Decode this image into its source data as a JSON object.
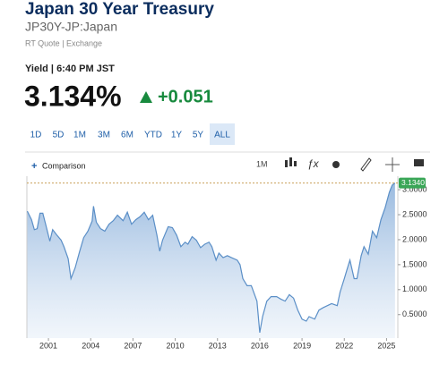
{
  "header": {
    "title": "Japan 30 Year Treasury",
    "symbol": "JP30Y-JP:Japan",
    "source": "RT Quote | Exchange"
  },
  "quote": {
    "label": "Yield | 6:40 PM JST",
    "price": "3.134%",
    "change": "+0.051"
  },
  "ranges": {
    "buttons": [
      "1D",
      "5D",
      "1M",
      "3M",
      "6M",
      "YTD",
      "1Y",
      "5Y",
      "ALL"
    ],
    "selected": 8
  },
  "toolbar": {
    "comparison": "Comparison",
    "interval": "1M"
  },
  "chart_data": {
    "type": "area",
    "color": "#5b8fc7",
    "x": [
      1999.5,
      1999.8,
      2000.0,
      2000.2,
      2000.4,
      2000.6,
      2000.8,
      2001.1,
      2001.3,
      2001.6,
      2001.9,
      2002.1,
      2002.4,
      2002.6,
      2002.9,
      2003.2,
      2003.5,
      2003.8,
      2004.1,
      2004.2,
      2004.4,
      2004.7,
      2005.0,
      2005.3,
      2005.6,
      2005.9,
      2006.3,
      2006.6,
      2006.9,
      2007.2,
      2007.5,
      2007.8,
      2008.1,
      2008.4,
      2008.7,
      2008.9,
      2009.1,
      2009.5,
      2009.8,
      2010.1,
      2010.4,
      2010.7,
      2010.9,
      2011.2,
      2011.5,
      2011.8,
      2012.1,
      2012.4,
      2012.6,
      2012.9,
      2013.1,
      2013.4,
      2013.7,
      2014.0,
      2014.4,
      2014.6,
      2014.8,
      2015.1,
      2015.4,
      2015.8,
      2016.0,
      2016.2,
      2016.5,
      2016.8,
      2017.2,
      2017.5,
      2017.8,
      2018.1,
      2018.4,
      2018.7,
      2019.0,
      2019.3,
      2019.5,
      2019.9,
      2020.2,
      2020.5,
      2020.8,
      2021.1,
      2021.5,
      2021.7,
      2022.0,
      2022.2,
      2022.4,
      2022.7,
      2022.9,
      2023.2,
      2023.4,
      2023.7,
      2024.0,
      2024.3,
      2024.6,
      2024.9,
      2025.2,
      2025.4,
      2025.6
    ],
    "values": [
      2.57,
      2.4,
      2.2,
      2.22,
      2.53,
      2.53,
      2.31,
      1.97,
      2.2,
      2.09,
      1.99,
      1.86,
      1.62,
      1.22,
      1.44,
      1.75,
      2.04,
      2.17,
      2.37,
      2.67,
      2.35,
      2.22,
      2.17,
      2.31,
      2.38,
      2.49,
      2.38,
      2.55,
      2.31,
      2.4,
      2.46,
      2.55,
      2.4,
      2.49,
      2.09,
      1.77,
      1.99,
      2.26,
      2.24,
      2.09,
      1.86,
      1.95,
      1.91,
      2.06,
      1.99,
      1.84,
      1.91,
      1.95,
      1.86,
      1.59,
      1.73,
      1.64,
      1.68,
      1.64,
      1.59,
      1.5,
      1.22,
      1.08,
      1.08,
      0.77,
      0.14,
      0.46,
      0.77,
      0.86,
      0.86,
      0.81,
      0.77,
      0.9,
      0.83,
      0.59,
      0.41,
      0.37,
      0.46,
      0.41,
      0.59,
      0.64,
      0.68,
      0.72,
      0.68,
      0.95,
      1.22,
      1.41,
      1.59,
      1.22,
      1.22,
      1.68,
      1.86,
      1.71,
      2.17,
      2.04,
      2.4,
      2.64,
      2.95,
      3.09,
      3.134
    ],
    "xlim": [
      1999.47,
      2025.8
    ],
    "xticks": [
      2001,
      2004,
      2007,
      2010,
      2013,
      2016,
      2019,
      2022,
      2025
    ],
    "ylim": [
      0.03,
      3.27
    ],
    "yticks": [
      {
        "value": 0.5,
        "label": "0.5000"
      },
      {
        "value": 1,
        "label": "1.0000"
      },
      {
        "value": 1.5,
        "label": "1.5000"
      },
      {
        "value": 2,
        "label": "2.0000"
      },
      {
        "value": 2.5,
        "label": "2.5000"
      },
      {
        "value": 3,
        "label": "3.0000"
      }
    ],
    "last": {
      "value": 3.134,
      "label": "3.1340"
    }
  }
}
